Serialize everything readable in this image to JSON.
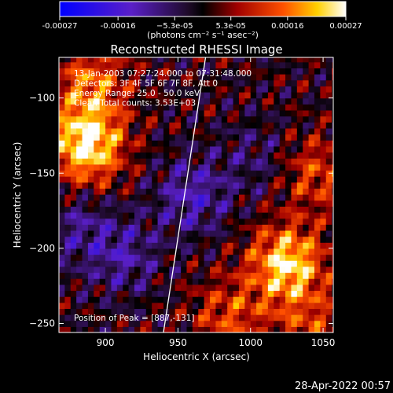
{
  "chart_data": {
    "type": "heatmap",
    "title": "Reconstructed RHESSI Image",
    "xlabel": "Heliocentric X (arcsec)",
    "ylabel": "Heliocentric Y (arcsec)",
    "xlim": [
      868,
      1057
    ],
    "ylim": [
      -256,
      -73
    ],
    "x_ticks": [
      900,
      950,
      1000,
      1050
    ],
    "y_ticks": [
      -100,
      -150,
      -200,
      -250
    ],
    "colorbar": {
      "min": -0.00027,
      "max": 0.00027,
      "colormap": "blue-purple-black-red-yellow-white",
      "tick_values": [
        -0.00027,
        -0.00016,
        -5.3e-05,
        5.3e-05,
        0.00016,
        0.00027
      ],
      "tick_labels": [
        "-0.00027",
        "-0.00016",
        "−5.3e-05",
        "5.3e-05",
        "0.00016",
        "0.00027"
      ],
      "units_label": "(photons cm⁻² s⁻¹ asec⁻²)"
    },
    "annotations": [
      "13-Jan-2003 07:27:24.000 to 07:31:48.000",
      "Detectors: 3F 4F 5F 6F 7F 8F, Att 0",
      "Energy Range: 25.0 - 50.0 keV",
      "Clean     Total counts: 3.53E+03"
    ],
    "peak_label": "Position of Peak = [887,-131]",
    "peak": [
      887,
      -131
    ],
    "limb_line": [
      [
        969,
        -73
      ],
      [
        940,
        -256
      ]
    ],
    "bright_sources": [
      {
        "x": 887,
        "y": -131,
        "value": 0.00027
      },
      {
        "x": 1025,
        "y": -210,
        "value": 0.00024
      },
      {
        "x": 1045,
        "y": -150,
        "value": 0.00012
      },
      {
        "x": 890,
        "y": -90,
        "value": 0.00015
      },
      {
        "x": 985,
        "y": -245,
        "value": 0.00012
      },
      {
        "x": 1040,
        "y": -250,
        "value": 0.0001
      }
    ],
    "dim_regions": [
      {
        "x": 960,
        "y": -165,
        "value": -0.00012
      },
      {
        "x": 912,
        "y": -205,
        "value": -0.0001
      },
      {
        "x": 880,
        "y": -185,
        "value": -8e-05
      },
      {
        "x": 1005,
        "y": -140,
        "value": -6e-05
      }
    ]
  },
  "footer": {
    "timestamp": "28-Apr-2022 00:57"
  }
}
